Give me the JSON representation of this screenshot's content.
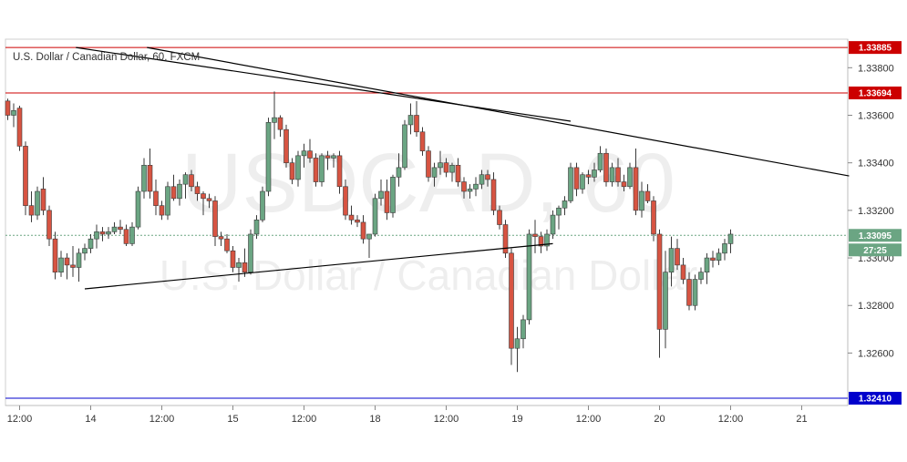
{
  "chart_data": {
    "type": "candlestick",
    "title": "U.S. Dollar / Canadian Dollar, 60, FXCM",
    "watermark": {
      "symbol": "USDCAD, 60",
      "name": "U.S. Dollar / Canadian Dollar"
    },
    "xlabel": "",
    "ylabel": "",
    "ylim": [
      1.3241,
      1.3392
    ],
    "y_ticks": [
      "1.32600",
      "1.32800",
      "1.33000",
      "1.33200",
      "1.33400",
      "1.33600",
      "1.33800"
    ],
    "y_tick_values": [
      1.326,
      1.328,
      1.33,
      1.332,
      1.334,
      1.336,
      1.338
    ],
    "x_ticks": [
      {
        "label": "12:00",
        "index": 2
      },
      {
        "label": "14",
        "index": 14
      },
      {
        "label": "12:00",
        "index": 26
      },
      {
        "label": "15",
        "index": 38
      },
      {
        "label": "12:00",
        "index": 50
      },
      {
        "label": "18",
        "index": 62
      },
      {
        "label": "12:00",
        "index": 74
      },
      {
        "label": "19",
        "index": 86
      },
      {
        "label": "12:00",
        "index": 98
      },
      {
        "label": "20",
        "index": 110
      },
      {
        "label": "12:00",
        "index": 122
      },
      {
        "label": "21",
        "index": 134
      }
    ],
    "grid": false,
    "colors": {
      "up": "#6ba583",
      "down": "#d75442",
      "wick": "#3a3a3a",
      "resistance": "#cc0000",
      "support": "#0000cc",
      "trendline": "#000000"
    },
    "horizontal_levels": [
      {
        "value": 1.33885,
        "label": "1.33885",
        "color": "#cc0000"
      },
      {
        "value": 1.33694,
        "label": "1.33694",
        "color": "#cc0000"
      },
      {
        "value": 1.3241,
        "label": "1.32410",
        "color": "#0000cc"
      }
    ],
    "current_price": {
      "value": 1.33095,
      "label": "1.33095",
      "countdown": "27:25"
    },
    "trendlines": [
      {
        "x1": 11.5,
        "y1": 1.33885,
        "x2": 95,
        "y2": 1.33575
      },
      {
        "x1": 23.5,
        "y1": 1.33885,
        "x2": 142,
        "y2": 1.33345
      },
      {
        "x1": 13,
        "y1": 1.3287,
        "x2": 92,
        "y2": 1.3306
      }
    ],
    "candles": [
      [
        1.3366,
        1.3367,
        1.3358,
        1.336
      ],
      [
        1.336,
        1.3365,
        1.3355,
        1.3362
      ],
      [
        1.3363,
        1.3364,
        1.3345,
        1.3347
      ],
      [
        1.3347,
        1.3349,
        1.3318,
        1.3322
      ],
      [
        1.3322,
        1.3328,
        1.3315,
        1.3318
      ],
      [
        1.3318,
        1.333,
        1.3316,
        1.3328
      ],
      [
        1.3329,
        1.3334,
        1.3318,
        1.332
      ],
      [
        1.332,
        1.3322,
        1.3305,
        1.3308
      ],
      [
        1.3308,
        1.3311,
        1.3291,
        1.3294
      ],
      [
        1.3294,
        1.3303,
        1.3292,
        1.33
      ],
      [
        1.33,
        1.3302,
        1.3291,
        1.3297
      ],
      [
        1.3297,
        1.3305,
        1.3292,
        1.3296
      ],
      [
        1.3296,
        1.3304,
        1.329,
        1.3302
      ],
      [
        1.3302,
        1.3306,
        1.3299,
        1.3304
      ],
      [
        1.3304,
        1.331,
        1.3302,
        1.3308
      ],
      [
        1.3308,
        1.3314,
        1.3304,
        1.3311
      ],
      [
        1.3311,
        1.3313,
        1.3307,
        1.331
      ],
      [
        1.331,
        1.3313,
        1.3308,
        1.3311
      ],
      [
        1.3311,
        1.3315,
        1.331,
        1.3313
      ],
      [
        1.3313,
        1.3316,
        1.331,
        1.3312
      ],
      [
        1.3312,
        1.3314,
        1.3305,
        1.3306
      ],
      [
        1.3306,
        1.3315,
        1.3305,
        1.3313
      ],
      [
        1.3313,
        1.333,
        1.3312,
        1.3328
      ],
      [
        1.3328,
        1.3342,
        1.3325,
        1.3339
      ],
      [
        1.3339,
        1.3346,
        1.3325,
        1.3328
      ],
      [
        1.3328,
        1.3333,
        1.3318,
        1.3322
      ],
      [
        1.3322,
        1.3324,
        1.3316,
        1.3318
      ],
      [
        1.3318,
        1.3332,
        1.3316,
        1.333
      ],
      [
        1.333,
        1.3335,
        1.3324,
        1.3325
      ],
      [
        1.3325,
        1.3333,
        1.3322,
        1.3331
      ],
      [
        1.3331,
        1.3336,
        1.3325,
        1.3335
      ],
      [
        1.3335,
        1.3337,
        1.3328,
        1.333
      ],
      [
        1.333,
        1.3332,
        1.3324,
        1.3327
      ],
      [
        1.3327,
        1.3328,
        1.3318,
        1.3325
      ],
      [
        1.3325,
        1.3327,
        1.3321,
        1.3324
      ],
      [
        1.3324,
        1.3326,
        1.3305,
        1.3309
      ],
      [
        1.3309,
        1.3311,
        1.3305,
        1.3308
      ],
      [
        1.3308,
        1.331,
        1.3302,
        1.3303
      ],
      [
        1.3303,
        1.3305,
        1.3294,
        1.3296
      ],
      [
        1.3296,
        1.33,
        1.329,
        1.3298
      ],
      [
        1.3298,
        1.3304,
        1.3292,
        1.3294
      ],
      [
        1.3294,
        1.3312,
        1.3293,
        1.331
      ],
      [
        1.331,
        1.3318,
        1.3308,
        1.3316
      ],
      [
        1.3316,
        1.333,
        1.3315,
        1.3328
      ],
      [
        1.3328,
        1.3359,
        1.3326,
        1.3357
      ],
      [
        1.3357,
        1.337,
        1.335,
        1.3359
      ],
      [
        1.3359,
        1.336,
        1.3351,
        1.3354
      ],
      [
        1.3354,
        1.3356,
        1.3338,
        1.334
      ],
      [
        1.334,
        1.3342,
        1.3331,
        1.3333
      ],
      [
        1.3333,
        1.3345,
        1.333,
        1.3343
      ],
      [
        1.3343,
        1.3348,
        1.3338,
        1.3345
      ],
      [
        1.3345,
        1.335,
        1.334,
        1.3342
      ],
      [
        1.3342,
        1.3344,
        1.333,
        1.3332
      ],
      [
        1.3332,
        1.3344,
        1.333,
        1.3343
      ],
      [
        1.3343,
        1.3345,
        1.3337,
        1.3342
      ],
      [
        1.3342,
        1.3344,
        1.3338,
        1.3343
      ],
      [
        1.3343,
        1.3345,
        1.3327,
        1.333
      ],
      [
        1.333,
        1.3333,
        1.3316,
        1.3318
      ],
      [
        1.3318,
        1.3322,
        1.3314,
        1.3316
      ],
      [
        1.3316,
        1.3318,
        1.3313,
        1.3315
      ],
      [
        1.3315,
        1.3318,
        1.3306,
        1.3308
      ],
      [
        1.3308,
        1.331,
        1.33,
        1.331
      ],
      [
        1.331,
        1.3327,
        1.3309,
        1.3325
      ],
      [
        1.3325,
        1.3333,
        1.3322,
        1.3328
      ],
      [
        1.3328,
        1.3333,
        1.3316,
        1.3319
      ],
      [
        1.3319,
        1.3335,
        1.3317,
        1.3334
      ],
      [
        1.3334,
        1.3344,
        1.333,
        1.3338
      ],
      [
        1.3338,
        1.3358,
        1.3337,
        1.3356
      ],
      [
        1.3356,
        1.3365,
        1.3352,
        1.336
      ],
      [
        1.336,
        1.3366,
        1.3351,
        1.3353
      ],
      [
        1.3353,
        1.3355,
        1.3343,
        1.3345
      ],
      [
        1.3345,
        1.3347,
        1.3332,
        1.3334
      ],
      [
        1.3334,
        1.334,
        1.333,
        1.3338
      ],
      [
        1.3338,
        1.3345,
        1.3335,
        1.334
      ],
      [
        1.334,
        1.3342,
        1.3334,
        1.3336
      ],
      [
        1.3336,
        1.334,
        1.3332,
        1.3339
      ],
      [
        1.3339,
        1.3342,
        1.333,
        1.3332
      ],
      [
        1.3332,
        1.3334,
        1.3325,
        1.3328
      ],
      [
        1.3328,
        1.3331,
        1.3325,
        1.3329
      ],
      [
        1.3329,
        1.3334,
        1.3326,
        1.3331
      ],
      [
        1.3331,
        1.3337,
        1.3329,
        1.3335
      ],
      [
        1.3335,
        1.3337,
        1.333,
        1.3333
      ],
      [
        1.3333,
        1.3336,
        1.3318,
        1.332
      ],
      [
        1.332,
        1.3322,
        1.3312,
        1.3314
      ],
      [
        1.3314,
        1.3316,
        1.33,
        1.3302
      ],
      [
        1.3302,
        1.3304,
        1.3255,
        1.3262
      ],
      [
        1.3262,
        1.3271,
        1.3252,
        1.3266
      ],
      [
        1.3266,
        1.3276,
        1.3262,
        1.3274
      ],
      [
        1.3274,
        1.3312,
        1.3272,
        1.331
      ],
      [
        1.331,
        1.3316,
        1.3302,
        1.3309
      ],
      [
        1.3309,
        1.3311,
        1.3302,
        1.3305
      ],
      [
        1.3305,
        1.3312,
        1.3303,
        1.331
      ],
      [
        1.331,
        1.332,
        1.3308,
        1.3318
      ],
      [
        1.3318,
        1.3322,
        1.3312,
        1.3321
      ],
      [
        1.3321,
        1.3326,
        1.3318,
        1.3324
      ],
      [
        1.3324,
        1.334,
        1.3323,
        1.3338
      ],
      [
        1.3338,
        1.334,
        1.3326,
        1.3329
      ],
      [
        1.3329,
        1.3336,
        1.3327,
        1.3335
      ],
      [
        1.3335,
        1.3337,
        1.3331,
        1.3334
      ],
      [
        1.3334,
        1.334,
        1.3332,
        1.3337
      ],
      [
        1.3337,
        1.3347,
        1.3336,
        1.3344
      ],
      [
        1.3344,
        1.3346,
        1.333,
        1.3332
      ],
      [
        1.3332,
        1.334,
        1.333,
        1.3338
      ],
      [
        1.3338,
        1.3342,
        1.333,
        1.3332
      ],
      [
        1.3332,
        1.3335,
        1.3328,
        1.333
      ],
      [
        1.333,
        1.334,
        1.3329,
        1.3338
      ],
      [
        1.3338,
        1.3346,
        1.3318,
        1.332
      ],
      [
        1.332,
        1.3332,
        1.3317,
        1.3328
      ],
      [
        1.3328,
        1.3331,
        1.3323,
        1.3324
      ],
      [
        1.3324,
        1.3326,
        1.3307,
        1.331
      ],
      [
        1.331,
        1.3312,
        1.3258,
        1.327
      ],
      [
        1.327,
        1.3303,
        1.3262,
        1.3294
      ],
      [
        1.3294,
        1.3309,
        1.3288,
        1.3304
      ],
      [
        1.3304,
        1.3308,
        1.3295,
        1.3297
      ],
      [
        1.3297,
        1.33,
        1.3289,
        1.3291
      ],
      [
        1.3291,
        1.3294,
        1.3278,
        1.328
      ],
      [
        1.328,
        1.3293,
        1.3278,
        1.3291
      ],
      [
        1.3291,
        1.3296,
        1.3289,
        1.3294
      ],
      [
        1.3294,
        1.3302,
        1.3289,
        1.33
      ],
      [
        1.33,
        1.3303,
        1.3296,
        1.3299
      ],
      [
        1.3299,
        1.3304,
        1.3297,
        1.3302
      ],
      [
        1.3302,
        1.3308,
        1.3299,
        1.3306
      ],
      [
        1.3306,
        1.3312,
        1.3302,
        1.331
      ]
    ]
  }
}
